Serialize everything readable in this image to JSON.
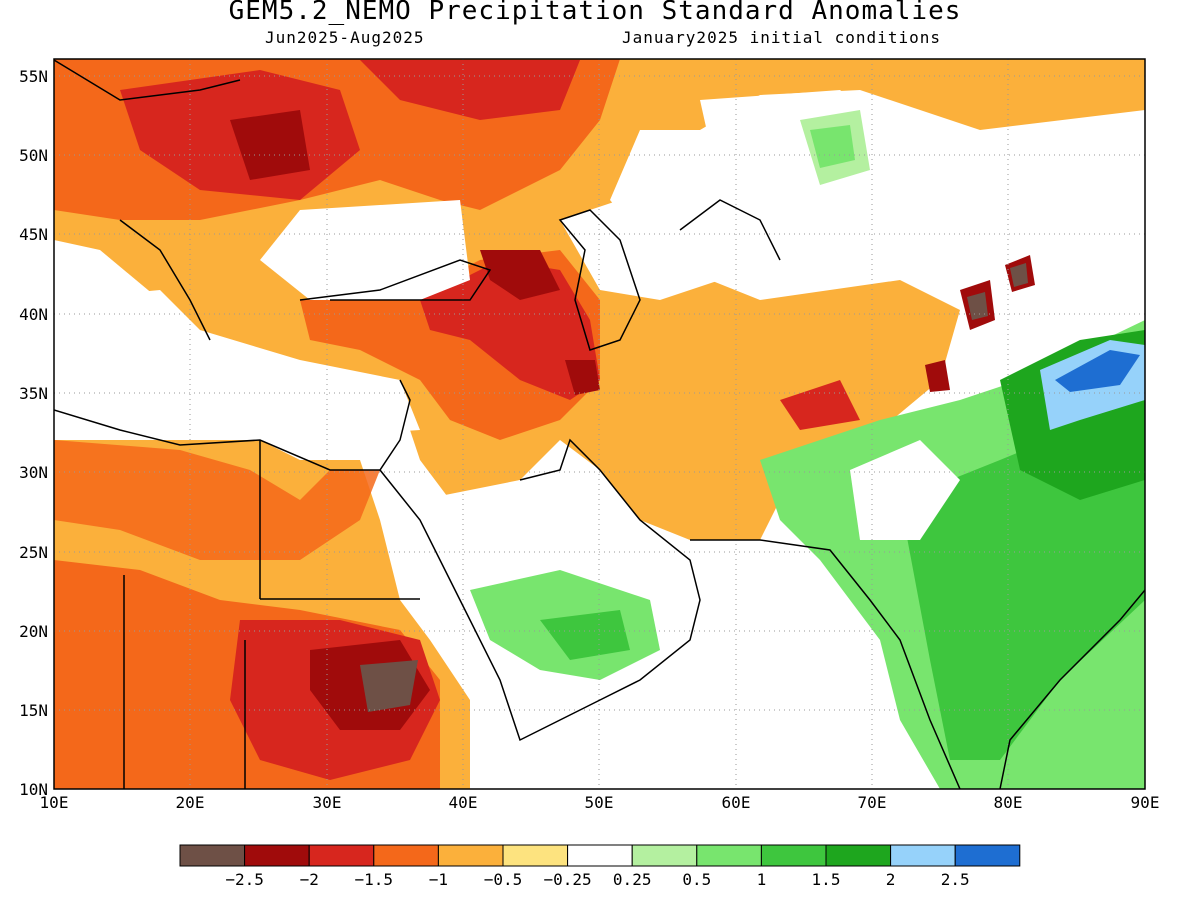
{
  "title": "GEM5.2_NEMO Precipitation Standard Anomalies",
  "period": "Jun2025-Aug2025",
  "init": "January2025 initial conditions",
  "map": {
    "lon_range": [
      10,
      90
    ],
    "lat_range": [
      10,
      56
    ],
    "lon_ticks": [
      "10E",
      "20E",
      "30E",
      "40E",
      "50E",
      "60E",
      "70E",
      "80E",
      "90E"
    ],
    "lat_ticks": [
      "10N",
      "15N",
      "20N",
      "25N",
      "30N",
      "35N",
      "40N",
      "45N",
      "50N",
      "55N"
    ],
    "grid": true
  },
  "legend": {
    "colors": [
      "#6e5046",
      "#a00b0b",
      "#d7261e",
      "#f4681a",
      "#fbb03b",
      "#fde37f",
      "#ffffff",
      "#b4f0a0",
      "#78e56e",
      "#3ec63e",
      "#1ea61e",
      "#96d2fa",
      "#1e6ed2"
    ],
    "labels": [
      "-2.5",
      "-2",
      "-1.5",
      "-1",
      "-0.5",
      "-0.25",
      "0.25",
      "0.5",
      "1",
      "1.5",
      "2",
      "2.5"
    ]
  }
}
